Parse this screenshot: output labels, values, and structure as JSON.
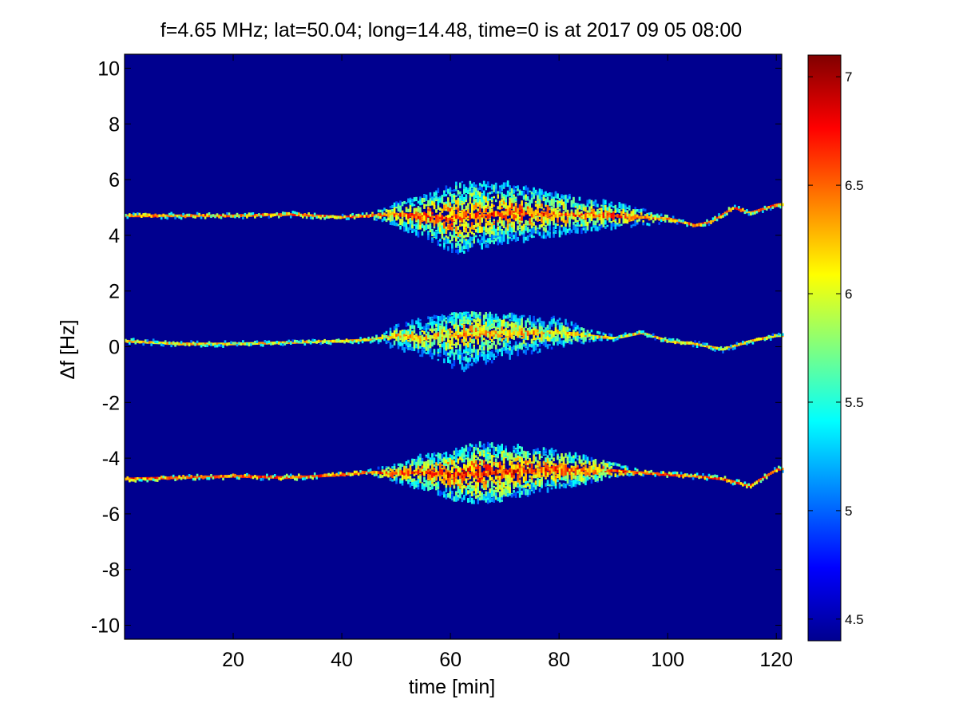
{
  "chart_data": {
    "type": "heatmap",
    "title": "f=4.65 MHz;  lat=50.04; long=14.48, time=0 is at 2017 09 05 08:00",
    "xlabel": "time [min]",
    "ylabel": "Δf [Hz]",
    "xlim": [
      0,
      121
    ],
    "ylim": [
      -10.5,
      10.5
    ],
    "xticks": [
      20,
      40,
      60,
      80,
      100,
      120
    ],
    "xtick_labels": [
      "20",
      "40",
      "60",
      "80",
      "100",
      "120"
    ],
    "yticks": [
      -10,
      -8,
      -6,
      -4,
      -2,
      0,
      2,
      4,
      6,
      8,
      10
    ],
    "ytick_labels": [
      "-10",
      "-8",
      "-6",
      "-4",
      "-2",
      "0",
      "2",
      "4",
      "6",
      "8",
      "10"
    ],
    "colormap": "jet",
    "background_color": "#00008f",
    "colorbar": {
      "range": [
        4.4,
        7.1
      ],
      "ticks": [
        4.5,
        5,
        5.5,
        6,
        6.5,
        7
      ],
      "tick_labels": [
        "4.5",
        "5",
        "5.5",
        "6",
        "6.5",
        "7"
      ]
    },
    "bands": [
      {
        "name": "upper",
        "center_points": [
          [
            0,
            4.7
          ],
          [
            20,
            4.7
          ],
          [
            30,
            4.75
          ],
          [
            40,
            4.65
          ],
          [
            45,
            4.7
          ],
          [
            50,
            4.75
          ],
          [
            55,
            4.7
          ],
          [
            60,
            4.6
          ],
          [
            65,
            4.7
          ],
          [
            70,
            4.8
          ],
          [
            80,
            4.75
          ],
          [
            90,
            4.7
          ],
          [
            100,
            4.6
          ],
          [
            105,
            4.35
          ],
          [
            108,
            4.5
          ],
          [
            112,
            5.0
          ],
          [
            115,
            4.8
          ],
          [
            120,
            5.1
          ]
        ],
        "spread_blob": {
          "x_range": [
            45,
            102
          ],
          "peak_x": 62,
          "up_to": 5.9,
          "down_to": 3.5
        },
        "intensity": 6.8
      },
      {
        "name": "center",
        "center_points": [
          [
            0,
            0.2
          ],
          [
            10,
            0.1
          ],
          [
            20,
            0.1
          ],
          [
            30,
            0.15
          ],
          [
            40,
            0.2
          ],
          [
            45,
            0.25
          ],
          [
            50,
            0.4
          ],
          [
            55,
            0.3
          ],
          [
            60,
            0.4
          ],
          [
            70,
            0.5
          ],
          [
            80,
            0.5
          ],
          [
            90,
            0.3
          ],
          [
            95,
            0.5
          ],
          [
            100,
            0.2
          ],
          [
            105,
            0.1
          ],
          [
            110,
            -0.1
          ],
          [
            115,
            0.2
          ],
          [
            120,
            0.4
          ]
        ],
        "spread_blob": {
          "x_range": [
            45,
            90
          ],
          "peak_x": 62,
          "up_to": 1.1,
          "down_to": -0.8
        },
        "intensity": 6.5
      },
      {
        "name": "lower",
        "center_points": [
          [
            0,
            -4.75
          ],
          [
            10,
            -4.7
          ],
          [
            20,
            -4.65
          ],
          [
            30,
            -4.7
          ],
          [
            40,
            -4.6
          ],
          [
            45,
            -4.5
          ],
          [
            50,
            -4.55
          ],
          [
            55,
            -4.5
          ],
          [
            60,
            -4.6
          ],
          [
            70,
            -4.5
          ],
          [
            80,
            -4.4
          ],
          [
            90,
            -4.45
          ],
          [
            100,
            -4.6
          ],
          [
            105,
            -4.65
          ],
          [
            110,
            -4.75
          ],
          [
            115,
            -5.0
          ],
          [
            120,
            -4.4
          ]
        ],
        "spread_blob": {
          "x_range": [
            45,
            95
          ],
          "peak_x": 65,
          "up_to": -3.5,
          "down_to": -5.6
        },
        "intensity": 6.9
      }
    ]
  }
}
